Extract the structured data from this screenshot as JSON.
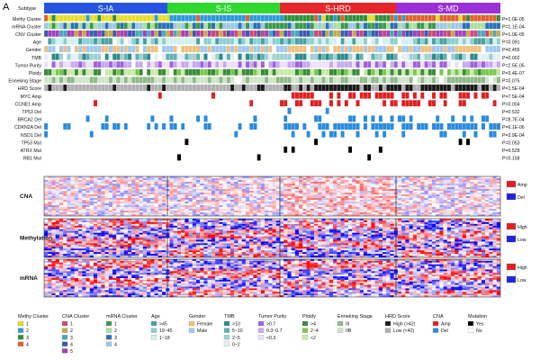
{
  "figure": {
    "panel_letter": "A",
    "subtype_label": "Subtype",
    "subtypes": [
      {
        "name": "S-IA",
        "color": "#2554e0"
      },
      {
        "name": "S-IS",
        "color": "#2fd82f"
      },
      {
        "name": "S-HRD",
        "color": "#e5262a"
      },
      {
        "name": "S-MD",
        "color": "#9b30d8"
      }
    ],
    "tracks": [
      {
        "name": "Methy Cluster",
        "p": "P=1.0E-05"
      },
      {
        "name": "mRNA Cluster",
        "p": "P=1.1E-04"
      },
      {
        "name": "CNV Cluster",
        "p": "P=1.0E-05"
      },
      {
        "name": "Age",
        "p": "P=0.091"
      },
      {
        "name": "Gender",
        "p": "P=0.455"
      },
      {
        "name": "TMB",
        "p": "P=0.002"
      },
      {
        "name": "Tumor Purity",
        "p": "P=2.5E-05"
      },
      {
        "name": "Ploidy",
        "p": "P=3.4E-07"
      },
      {
        "name": "Enneking Stage",
        "p": "P=0.075"
      },
      {
        "name": "HRD Score",
        "p": "P=1.5E-04"
      },
      {
        "name": "MYC Amp",
        "p": "P=7.5E-04"
      },
      {
        "name": "CCNE1 Amp",
        "p": "P=0.004"
      },
      {
        "name": "TP53 Del",
        "p": "P=0.532"
      },
      {
        "name": "BRCA2 Del",
        "p": "P=8.7E-04"
      },
      {
        "name": "CDKN2A Del",
        "p": "P=6.1E-06"
      },
      {
        "name": "NSD1 Del",
        "p": "P=3.9E-04"
      },
      {
        "name": "TP53 Mut",
        "p": "P=0.053"
      },
      {
        "name": "ATRX Mut",
        "p": "P=0.528"
      },
      {
        "name": "RB1 Mut",
        "p": "P=0.158"
      }
    ],
    "heatmaps": [
      {
        "name": "CNA",
        "legend_top": "Amp",
        "legend_bottom": "Del"
      },
      {
        "name": "Methylation",
        "legend_top": "High",
        "legend_bottom": "Low"
      },
      {
        "name": "mRNA",
        "legend_top": "High",
        "legend_bottom": "Low"
      }
    ],
    "legends": [
      {
        "title": "Methy Cluster",
        "items": [
          {
            "label": "1",
            "color": "#e5dd2a"
          },
          {
            "label": "2",
            "color": "#2a9ad6"
          },
          {
            "label": "3",
            "color": "#2f8f3a"
          },
          {
            "label": "4",
            "color": "#e0602a"
          }
        ]
      },
      {
        "title": "CNA Cluster",
        "items": [
          {
            "label": "1",
            "color": "#c84a7a"
          },
          {
            "label": "2",
            "color": "#c8a84a"
          },
          {
            "label": "3",
            "color": "#4aa8b8"
          },
          {
            "label": "4",
            "color": "#3a5ab0"
          },
          {
            "label": "5",
            "color": "#a040c0"
          }
        ]
      },
      {
        "title": "mRNA Cluster",
        "items": [
          {
            "label": "1",
            "color": "#3a9a4a"
          },
          {
            "label": "2",
            "color": "#a8e0a0"
          },
          {
            "label": "3",
            "color": "#2a70b8"
          },
          {
            "label": "4",
            "color": "#9ac8e8"
          }
        ]
      },
      {
        "title": "Age",
        "items": [
          {
            "label": ">45",
            "color": "#4aa0a0"
          },
          {
            "label": "19~45",
            "color": "#8ad0d0"
          },
          {
            "label": "1~18",
            "color": "#d0f0f0"
          }
        ]
      },
      {
        "title": "Gender",
        "items": [
          {
            "label": "Female",
            "color": "#f0c080"
          },
          {
            "label": "Male",
            "color": "#a0c8f0"
          }
        ]
      },
      {
        "title": "TMB",
        "items": [
          {
            "label": ">10",
            "color": "#2a8a8a"
          },
          {
            "label": "5~10",
            "color": "#60b0b0"
          },
          {
            "label": "2~5",
            "color": "#a0d0d0"
          },
          {
            "label": "0~2",
            "color": "#e0f0f0"
          }
        ]
      },
      {
        "title": "Tumor Purity",
        "items": [
          {
            "label": ">0.7",
            "color": "#a060e0"
          },
          {
            "label": "0.3~0.7",
            "color": "#c8a8f0"
          },
          {
            "label": "<0.3",
            "color": "#ece0fa"
          }
        ]
      },
      {
        "title": "Ploidy",
        "items": [
          {
            "label": ">4",
            "color": "#3a8a3a"
          },
          {
            "label": "2~4",
            "color": "#7ac84a"
          },
          {
            "label": "<2",
            "color": "#c8e8a8"
          }
        ]
      },
      {
        "title": "Enneking Stage",
        "items": [
          {
            "label": "III",
            "color": "#90b888"
          },
          {
            "label": "IIB",
            "color": "#d0e4c8"
          }
        ]
      },
      {
        "title": "HRD Score",
        "items": [
          {
            "label": "High (>42)",
            "color": "#1a1a1a"
          },
          {
            "label": "Low (<42)",
            "color": "#b0b0b0"
          }
        ]
      },
      {
        "title": "CNA",
        "items": [
          {
            "label": "Amp",
            "color": "#e02020"
          },
          {
            "label": "Del",
            "color": "#2a8ae0"
          }
        ]
      },
      {
        "title": "Mutation",
        "items": [
          {
            "label": "Yes",
            "color": "#000000"
          },
          {
            "label": "No",
            "color": "#ffffff"
          }
        ]
      }
    ]
  }
}
